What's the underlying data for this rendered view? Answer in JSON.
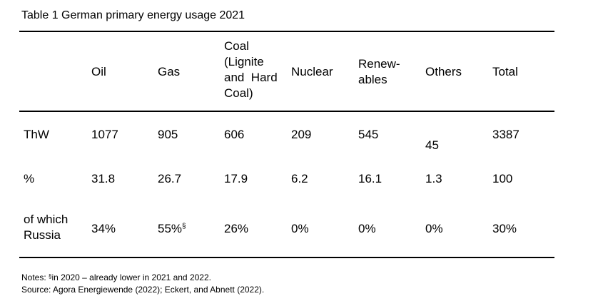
{
  "title": "Table 1 German primary energy usage 2021",
  "headers": {
    "oil": "Oil",
    "gas": "Gas",
    "coal": [
      "Coal",
      "(Lignite",
      "and  Hard",
      "Coal)"
    ],
    "nuclear": "Nuclear",
    "renewables": [
      "Renew-",
      "ables"
    ],
    "others": "Others",
    "total": "Total"
  },
  "rows": [
    {
      "label": "ThW",
      "values": [
        "1077",
        "905",
        "606",
        "209",
        "545",
        "45",
        "3387"
      ]
    },
    {
      "label": "%",
      "values": [
        "31.8",
        "26.7",
        "17.9",
        "6.2",
        "16.1",
        "1.3",
        "100"
      ]
    },
    {
      "label_lines": [
        "of which",
        "Russia"
      ],
      "values": [
        "34%",
        "55%",
        "26%",
        "0%",
        "0%",
        "0%",
        "30%"
      ],
      "gas_mark": "§"
    }
  ],
  "notes": {
    "line1_prefix": "Notes: ",
    "line1_mark": "§",
    "line1_rest": "in 2020 – already lower in 2021 and 2022.",
    "line2": "Source: Agora Energiewende (2022); Eckert, and Abnett (2022)."
  }
}
